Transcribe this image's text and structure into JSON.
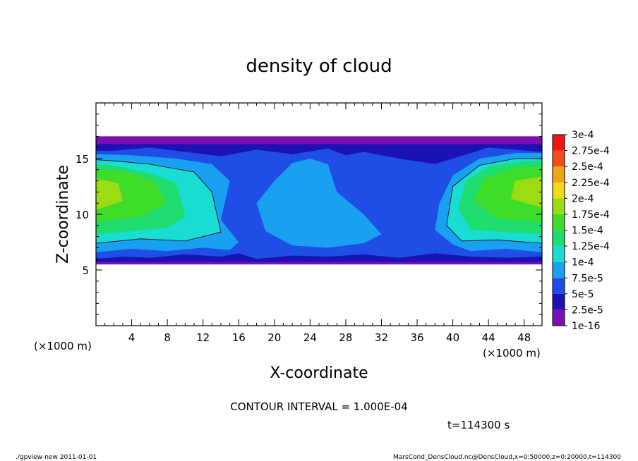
{
  "chart_data": {
    "type": "heatmap",
    "title": "density of cloud",
    "xlabel": "X-coordinate",
    "ylabel": "Z-coordinate",
    "x_unit_label": "(×1000 m)",
    "z_unit_label": "(×1000 m)",
    "xlim": [
      0,
      50
    ],
    "ylim": [
      0,
      20
    ],
    "x_ticks": [
      4,
      8,
      12,
      16,
      20,
      24,
      28,
      32,
      36,
      40,
      44,
      48
    ],
    "y_ticks": [
      5,
      10,
      15
    ],
    "x_tick_labels": [
      "4",
      "8",
      "12",
      "16",
      "20",
      "24",
      "28",
      "32",
      "36",
      "40",
      "44",
      "48"
    ],
    "y_tick_labels": [
      "5",
      "10",
      "15"
    ],
    "contour_interval_text": "CONTOUR INTERVAL = 1.000E-04",
    "time_text": "t=114300 s",
    "colorbar": {
      "levels": [
        "1e-16",
        "2.5e-5",
        "5e-5",
        "7.5e-5",
        "1e-4",
        "1.25e-4",
        "1.5e-4",
        "1.75e-4",
        "2e-4",
        "2.25e-4",
        "2.5e-4",
        "2.75e-4",
        "3e-4"
      ],
      "colors": [
        "#7a0fb4",
        "#1c12b4",
        "#1f4ee6",
        "#1aa0f0",
        "#19dcd2",
        "#1edc6e",
        "#3fdc2a",
        "#9cdc14",
        "#f0dc14",
        "#f0a514",
        "#f04f14",
        "#f01414",
        "#f57878"
      ]
    },
    "bands": [
      {
        "level": "1e-16",
        "color": "#7a0fb4",
        "outline": [
          [
            0,
            5.5
          ],
          [
            50,
            5.5
          ],
          [
            50,
            17
          ],
          [
            0,
            17
          ]
        ]
      },
      {
        "level": "2.5e-5",
        "color": "#1c12b4",
        "outline": [
          [
            0,
            5.7
          ],
          [
            50,
            5.7
          ],
          [
            50,
            16.3
          ],
          [
            0,
            16.3
          ]
        ]
      },
      {
        "level": "5e-5",
        "color": "#1f4ee6",
        "outline": [
          [
            0,
            6
          ],
          [
            3,
            6.2
          ],
          [
            6,
            6.1
          ],
          [
            10,
            6.4
          ],
          [
            14,
            6.2
          ],
          [
            16,
            6.5
          ],
          [
            18,
            6
          ],
          [
            22,
            6.3
          ],
          [
            26,
            6.2
          ],
          [
            30,
            6.4
          ],
          [
            34,
            6.1
          ],
          [
            38,
            6.5
          ],
          [
            42,
            6.2
          ],
          [
            46,
            6.1
          ],
          [
            50,
            6.2
          ],
          [
            50,
            15.6
          ],
          [
            44,
            16
          ],
          [
            40,
            15
          ],
          [
            38,
            14.5
          ],
          [
            34,
            15
          ],
          [
            30,
            15.6
          ],
          [
            28,
            15.3
          ],
          [
            26,
            15.9
          ],
          [
            22,
            15.4
          ],
          [
            18,
            15.8
          ],
          [
            14,
            15.2
          ],
          [
            10,
            15.6
          ],
          [
            6,
            16
          ],
          [
            2,
            15.7
          ],
          [
            0,
            15.7
          ]
        ]
      },
      {
        "level": "7.5e-5",
        "color": "#1aa0f0",
        "outline": [
          [
            0,
            6.6
          ],
          [
            4,
            6.9
          ],
          [
            8,
            6.7
          ],
          [
            12,
            7
          ],
          [
            15,
            6.8
          ],
          [
            16,
            7.5
          ],
          [
            14,
            9.5
          ],
          [
            15,
            13
          ],
          [
            13,
            14.5
          ],
          [
            9,
            15
          ],
          [
            4,
            15.3
          ],
          [
            0,
            15.4
          ]
        ]
      },
      {
        "level": "7.5e-5",
        "color": "#1aa0f0",
        "outline": [
          [
            22,
            7.2
          ],
          [
            26,
            7
          ],
          [
            30,
            7.4
          ],
          [
            32,
            8.2
          ],
          [
            30,
            10
          ],
          [
            27,
            12
          ],
          [
            26,
            14.5
          ],
          [
            24,
            15
          ],
          [
            22,
            14.6
          ],
          [
            20,
            13
          ],
          [
            18,
            11
          ],
          [
            19,
            8.5
          ]
        ]
      },
      {
        "level": "7.5e-5",
        "color": "#1aa0f0",
        "outline": [
          [
            50,
            6.6
          ],
          [
            46,
            6.9
          ],
          [
            42,
            6.7
          ],
          [
            40,
            7.3
          ],
          [
            38,
            8.6
          ],
          [
            38.5,
            11
          ],
          [
            40,
            13.5
          ],
          [
            43,
            15
          ],
          [
            47,
            15.5
          ],
          [
            50,
            15.5
          ]
        ]
      },
      {
        "level": "1e-4",
        "color": "#19dcd2",
        "outline": [
          [
            0,
            7.4
          ],
          [
            5,
            7.8
          ],
          [
            10,
            7.6
          ],
          [
            14,
            8.4
          ],
          [
            13,
            12
          ],
          [
            11,
            13.8
          ],
          [
            6,
            14.5
          ],
          [
            2,
            14.8
          ],
          [
            0,
            14.9
          ]
        ]
      },
      {
        "level": "1e-4",
        "color": "#19dcd2",
        "outline": [
          [
            50,
            7.4
          ],
          [
            45,
            7.7
          ],
          [
            41,
            7.6
          ],
          [
            39.3,
            9
          ],
          [
            40,
            12.5
          ],
          [
            43,
            14.4
          ],
          [
            47,
            15
          ],
          [
            50,
            15
          ]
        ]
      },
      {
        "level": "1.25e-4",
        "color": "#1edc6e",
        "outline": [
          [
            0,
            8.2
          ],
          [
            4,
            8.5
          ],
          [
            8,
            8.8
          ],
          [
            10,
            9.8
          ],
          [
            9,
            12.8
          ],
          [
            6,
            13.7
          ],
          [
            2,
            14.4
          ],
          [
            0,
            14.5
          ]
        ]
      },
      {
        "level": "1.25e-4",
        "color": "#1edc6e",
        "outline": [
          [
            50,
            8.2
          ],
          [
            46,
            8.4
          ],
          [
            42,
            8.6
          ],
          [
            40.6,
            10.5
          ],
          [
            41.5,
            13
          ],
          [
            44,
            14.3
          ],
          [
            48,
            14.8
          ],
          [
            50,
            14.8
          ]
        ]
      },
      {
        "level": "1.5e-4",
        "color": "#3fdc2a",
        "outline": [
          [
            0,
            9.3
          ],
          [
            5,
            9.8
          ],
          [
            8,
            11
          ],
          [
            6.5,
            13
          ],
          [
            3,
            13.9
          ],
          [
            0,
            14
          ]
        ]
      },
      {
        "level": "1.5e-4",
        "color": "#3fdc2a",
        "outline": [
          [
            50,
            9.3
          ],
          [
            45,
            9.6
          ],
          [
            42.3,
            11.2
          ],
          [
            43.5,
            13.2
          ],
          [
            47,
            14.2
          ],
          [
            50,
            14.3
          ]
        ]
      },
      {
        "level": "1.75e-4",
        "color": "#9cdc14",
        "outline": [
          [
            0,
            10.4
          ],
          [
            3,
            11.2
          ],
          [
            2.5,
            12.8
          ],
          [
            0,
            13.2
          ]
        ]
      },
      {
        "level": "1.75e-4",
        "color": "#9cdc14",
        "outline": [
          [
            50,
            10.6
          ],
          [
            46.5,
            11.4
          ],
          [
            47,
            13
          ],
          [
            50,
            13.4
          ]
        ]
      }
    ]
  },
  "footer": {
    "left": "./gpview-new  2011-01-01",
    "right": "MarsCond_DensCloud.nc@DensCloud,x=0:50000,z=0:20000,t=114300"
  }
}
